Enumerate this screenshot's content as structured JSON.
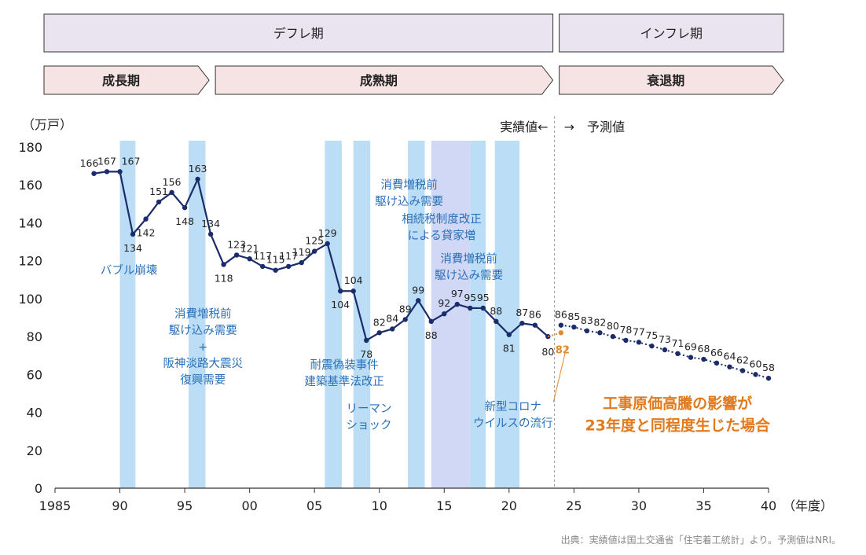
{
  "chart_data": {
    "type": "line",
    "ylabel": "（万戸）",
    "xlabel": "（年度）",
    "ylim": [
      0,
      180
    ],
    "yticks": [
      0,
      20,
      40,
      60,
      80,
      100,
      120,
      140,
      160,
      180
    ],
    "xlim": [
      1985,
      2040
    ],
    "xticks": [
      {
        "value": 1985,
        "label": "1985"
      },
      {
        "value": 1990,
        "label": "90"
      },
      {
        "value": 1995,
        "label": "95"
      },
      {
        "value": 2000,
        "label": "00"
      },
      {
        "value": 2005,
        "label": "05"
      },
      {
        "value": 2010,
        "label": "10"
      },
      {
        "value": 2015,
        "label": "15"
      },
      {
        "value": 2020,
        "label": "20"
      },
      {
        "value": 2025,
        "label": "25"
      },
      {
        "value": 2030,
        "label": "30"
      },
      {
        "value": 2035,
        "label": "35"
      },
      {
        "value": 2040,
        "label": "40"
      }
    ],
    "phases_top": [
      {
        "label": "デフレ期",
        "from": 1985,
        "to": 2023.5
      },
      {
        "label": "インフレ期",
        "from": 2023.5,
        "to": 2040
      }
    ],
    "phases_bottom": [
      {
        "label": "成長期",
        "from": 1985,
        "to": 1997
      },
      {
        "label": "成熟期",
        "from": 1997,
        "to": 2023.5
      },
      {
        "label": "衰退期",
        "from": 2023.5,
        "to": 2040
      }
    ],
    "divider": {
      "x": 2023.5,
      "left_label": "実績値←",
      "right_label": "→　予測値"
    },
    "bands": [
      {
        "from": 1990,
        "to": 1991.2
      },
      {
        "from": 1995.3,
        "to": 1996.6
      },
      {
        "from": 2005.8,
        "to": 2007.1
      },
      {
        "from": 2008,
        "to": 2009.3
      },
      {
        "from": 2012.2,
        "to": 2013.5
      },
      {
        "from": 2014,
        "to": 2017,
        "light": true
      },
      {
        "from": 2017,
        "to": 2018.2
      },
      {
        "from": 2018.9,
        "to": 2020.8
      }
    ],
    "series": [
      {
        "color": "#1b2c6b",
        "points": [
          {
            "x": 1988,
            "y": 166
          },
          {
            "x": 1989,
            "y": 167
          },
          {
            "x": 1990,
            "y": 167
          },
          {
            "x": 1991,
            "y": 134
          },
          {
            "x": 1992,
            "y": 142
          },
          {
            "x": 1993,
            "y": 151
          },
          {
            "x": 1994,
            "y": 156
          },
          {
            "x": 1995,
            "y": 148
          },
          {
            "x": 1996,
            "y": 163
          },
          {
            "x": 1997,
            "y": 134
          },
          {
            "x": 1998,
            "y": 118
          },
          {
            "x": 1999,
            "y": 123
          },
          {
            "x": 2000,
            "y": 121
          },
          {
            "x": 2001,
            "y": 117
          },
          {
            "x": 2002,
            "y": 115
          },
          {
            "x": 2003,
            "y": 117
          },
          {
            "x": 2004,
            "y": 119
          },
          {
            "x": 2005,
            "y": 125
          },
          {
            "x": 2006,
            "y": 129
          },
          {
            "x": 2007,
            "y": 104
          },
          {
            "x": 2008,
            "y": 104
          },
          {
            "x": 2009,
            "y": 78
          },
          {
            "x": 2010,
            "y": 82
          },
          {
            "x": 2011,
            "y": 84
          },
          {
            "x": 2012,
            "y": 89
          },
          {
            "x": 2013,
            "y": 99
          },
          {
            "x": 2014,
            "y": 88
          },
          {
            "x": 2015,
            "y": 92
          },
          {
            "x": 2016,
            "y": 97
          },
          {
            "x": 2017,
            "y": 95
          },
          {
            "x": 2018,
            "y": 95
          },
          {
            "x": 2019,
            "y": 88
          },
          {
            "x": 2020,
            "y": 81
          },
          {
            "x": 2021,
            "y": 87
          },
          {
            "x": 2022,
            "y": 86
          },
          {
            "x": 2023,
            "y": 80
          }
        ]
      },
      {
        "color": "#1b2c6b",
        "dotted": true,
        "points": [
          {
            "x": 2024,
            "y": 86
          },
          {
            "x": 2025,
            "y": 85
          },
          {
            "x": 2026,
            "y": 83
          },
          {
            "x": 2027,
            "y": 82
          },
          {
            "x": 2028,
            "y": 80
          },
          {
            "x": 2029,
            "y": 78
          },
          {
            "x": 2030,
            "y": 77
          },
          {
            "x": 2031,
            "y": 75
          },
          {
            "x": 2032,
            "y": 73
          },
          {
            "x": 2033,
            "y": 71
          },
          {
            "x": 2034,
            "y": 69
          },
          {
            "x": 2035,
            "y": 68
          },
          {
            "x": 2036,
            "y": 66
          },
          {
            "x": 2037,
            "y": 64
          },
          {
            "x": 2038,
            "y": 62
          },
          {
            "x": 2039,
            "y": 60
          },
          {
            "x": 2040,
            "y": 58
          }
        ]
      },
      {
        "color": "#e08a2c",
        "dotted": true,
        "points": [
          {
            "x": 2023,
            "y": 80
          },
          {
            "x": 2024,
            "y": 82
          }
        ]
      }
    ],
    "annotations": [
      {
        "lines": [
          "バブル崩壊"
        ],
        "x": 1990.7,
        "y": 113
      },
      {
        "lines": [
          "消費増税前",
          "駆け込み需要",
          "+",
          "阪神淡路大震災",
          "復興需要"
        ],
        "x": 1996.4,
        "y": 90
      },
      {
        "lines": [
          "耐震偽装事件",
          "建築基準法改正"
        ],
        "x": 2007.3,
        "y": 63
      },
      {
        "lines": [
          "リーマン",
          "ショック"
        ],
        "x": 2009.2,
        "y": 40
      },
      {
        "lines": [
          "消費増税前",
          "駆け込み需要"
        ],
        "x": 2012.3,
        "y": 158
      },
      {
        "lines": [
          "相続税制度改正",
          "による貸家増"
        ],
        "x": 2014.8,
        "y": 140
      },
      {
        "lines": [
          "消費増税前",
          "駆け込み需要"
        ],
        "x": 2016.9,
        "y": 119
      },
      {
        "lines": [
          "新型コロナ",
          "ウイルスの流行"
        ],
        "x": 2020.3,
        "y": 41
      }
    ],
    "callout": {
      "lines": [
        "工事原価高騰の影響が",
        "23年度と同程度生じた場合"
      ],
      "x": 2032.5,
      "y": 42,
      "anchor": {
        "x": 2024.3,
        "y": 75
      },
      "color": "#e07a1c"
    }
  },
  "source_note": "出典：実績値は国土交通省「住宅着工統計」より。予測値はNRI。"
}
